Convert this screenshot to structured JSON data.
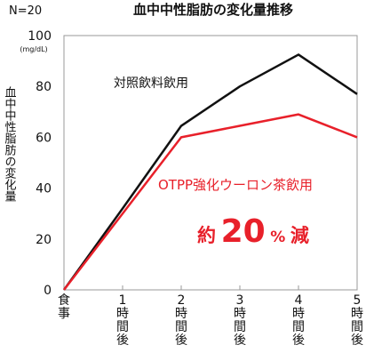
{
  "chart_data": {
    "type": "line",
    "title": "血中中性脂肪の変化量推移",
    "sample_size_label": "N=20",
    "ylabel": "血中中性脂肪の変化量",
    "yunit": "(mg/dL)",
    "ylim": [
      0,
      100
    ],
    "yticks": [
      "0",
      "20",
      "40",
      "60",
      "80",
      "100"
    ],
    "categories": [
      "食事",
      "1時間後",
      "2時間後",
      "3時間後",
      "4時間後",
      "5時間後"
    ],
    "grid": false,
    "series": [
      {
        "name": "対照飲料飲用",
        "color": "#111111",
        "values": [
          0,
          32,
          64.5,
          80,
          92.5,
          77
        ]
      },
      {
        "name": "OTPP強化ウーロン茶飲用",
        "color": "#e8202a",
        "values": [
          0,
          30,
          60,
          64.5,
          69,
          60
        ]
      }
    ],
    "annotation": {
      "prefix": "約",
      "number": "20",
      "percent": "%",
      "suffix": "減",
      "color": "#e8202a"
    }
  }
}
